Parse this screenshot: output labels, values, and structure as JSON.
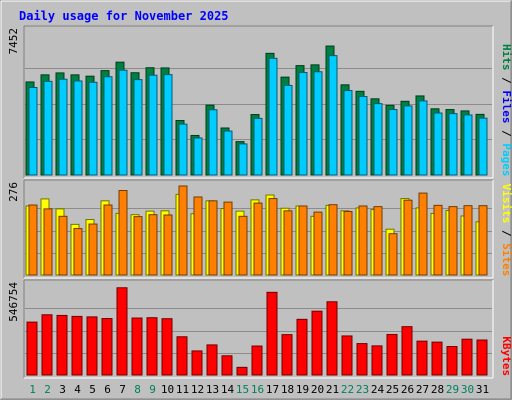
{
  "chart_data": {
    "type": "bar",
    "title": "Daily usage for November 2025",
    "categories": [
      "1",
      "2",
      "3",
      "4",
      "5",
      "6",
      "7",
      "8",
      "9",
      "10",
      "11",
      "12",
      "13",
      "14",
      "15",
      "16",
      "17",
      "18",
      "19",
      "20",
      "21",
      "22",
      "23",
      "24",
      "25",
      "26",
      "27",
      "28",
      "29",
      "30",
      "31"
    ],
    "weekend_days": [
      1,
      2,
      8,
      9,
      15,
      16,
      22,
      23,
      29,
      30
    ],
    "panels": [
      {
        "id": "hits-files-pages",
        "ymax": 7452,
        "ymax_label": "7452",
        "legend": [
          {
            "name": "Pages",
            "color": "#00ccff"
          },
          {
            "name": "Files",
            "color": "#0000ff"
          },
          {
            "name": "Hits",
            "color": "#008040"
          }
        ],
        "series": [
          {
            "name": "Hits",
            "color": "#008040",
            "values": [
              4850,
              5220,
              5320,
              5220,
              5150,
              5440,
              5880,
              5330,
              5590,
              5580,
              2840,
              2060,
              3640,
              2450,
              1740,
              3150,
              6340,
              5100,
              5700,
              5740,
              6720,
              4700,
              4360,
              3970,
              3630,
              3840,
              4120,
              3450,
              3410,
              3340,
              3160
            ]
          },
          {
            "name": "Files",
            "color": "#0000ff",
            "values": [
              3300,
              3550,
              3620,
              3540,
              3490,
              3680,
              4020,
              3620,
              3810,
              3790,
              1930,
              1410,
              2470,
              1670,
              1180,
              2140,
              5050,
              3470,
              3880,
              3910,
              4570,
              3200,
              2970,
              2700,
              2470,
              2610,
              2800,
              2350,
              2320,
              2270,
              2150
            ]
          },
          {
            "name": "Pages",
            "color": "#00ccff",
            "values": [
              4560,
              4880,
              4990,
              4900,
              4830,
              5120,
              5460,
              4970,
              5200,
              5230,
              2650,
              1930,
              3400,
              2290,
              1620,
              2950,
              6080,
              4670,
              5340,
              5380,
              6220,
              4400,
              4090,
              3720,
              3410,
              3600,
              3860,
              3230,
              3200,
              3130,
              2960
            ]
          }
        ]
      },
      {
        "id": "visits-sites",
        "ymax": 276,
        "ymax_label": "276",
        "legend": [
          {
            "name": "Sites",
            "color": "#ff8000"
          },
          {
            "name": "Visits",
            "color": "#ffff00"
          }
        ],
        "series": [
          {
            "name": "Visits",
            "color": "#ffff00",
            "values": [
              214,
              236,
              205,
              157,
              172,
              230,
              191,
              187,
              198,
              199,
              250,
              190,
              230,
              206,
              198,
              233,
              248,
              207,
              214,
              182,
              216,
              199,
              208,
              203,
              142,
              237,
              208,
              191,
              200,
              183,
              165
            ]
          },
          {
            "name": "Sites",
            "color": "#ff8000",
            "values": [
              217,
              205,
              182,
              144,
              158,
              217,
              262,
              181,
              187,
              186,
              276,
              242,
              230,
              226,
              182,
              223,
              237,
              199,
              214,
              195,
              218,
              197,
              214,
              212,
              128,
              232,
              254,
              216,
              212,
              215,
              215
            ]
          }
        ]
      },
      {
        "id": "kbytes",
        "ymax": 546754,
        "ymax_label": "546754",
        "legend": [
          {
            "name": "KBytes",
            "color": "#ff0000"
          }
        ],
        "series": [
          {
            "name": "KBytes",
            "color": "#ff0000",
            "values": [
              325000,
              370000,
              366000,
              360000,
              357000,
              347000,
              536000,
              350000,
              352000,
              346000,
              235000,
              148000,
              185000,
              118000,
              47000,
              178000,
              508000,
              248000,
              342000,
              392000,
              450000,
              240000,
              193000,
              179000,
              249000,
              297000,
              208000,
              202000,
              175000,
              220000,
              215000
            ]
          }
        ]
      }
    ]
  }
}
